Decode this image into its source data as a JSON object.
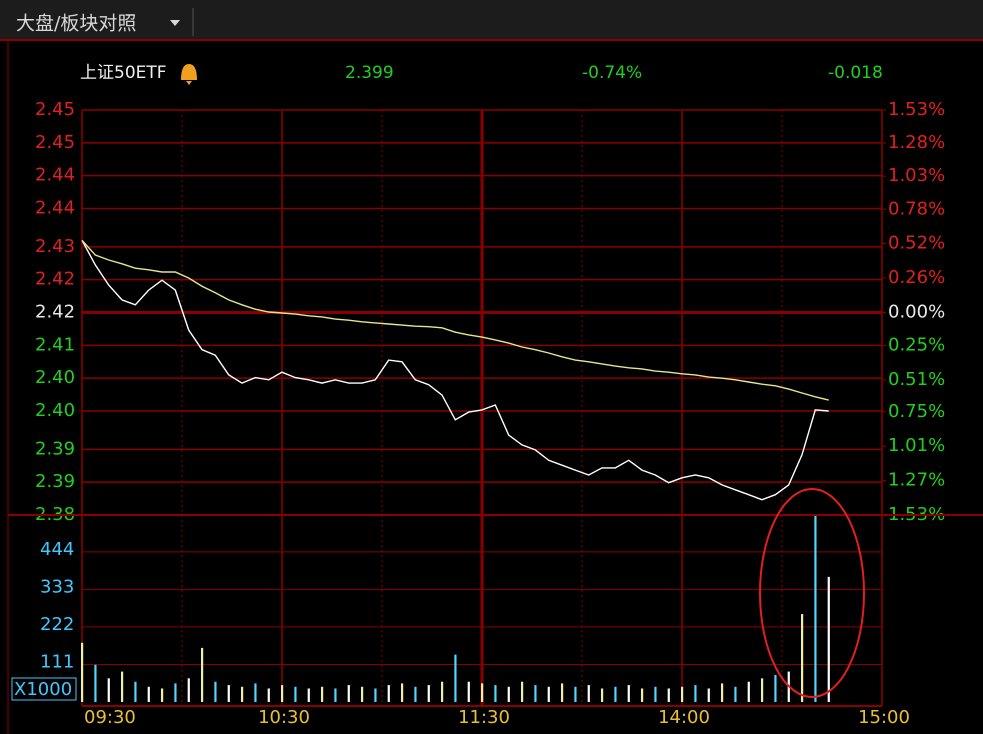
{
  "tab_title": "大盘/板块对照",
  "chart_data": {
    "type": "line",
    "title": "上证50ETF",
    "price": "2.399",
    "change_percent": "-0.74%",
    "change": "-0.018",
    "x": [
      0,
      4,
      8,
      12,
      16,
      20,
      24,
      28,
      32,
      36,
      40,
      44,
      48,
      52,
      56,
      60,
      64,
      68,
      72,
      76,
      80,
      84,
      88,
      92,
      96,
      100,
      104,
      108,
      112,
      116,
      120,
      124,
      128,
      132,
      136,
      140,
      144,
      148,
      152,
      156,
      160,
      164,
      168,
      172,
      176,
      180,
      184,
      188,
      192,
      196,
      200,
      204,
      208,
      212,
      216,
      220,
      224
    ],
    "xlim": [
      0,
      240
    ],
    "xticks": [
      {
        "value": 0,
        "label": "09:30"
      },
      {
        "value": 60,
        "label": "10:30"
      },
      {
        "value": 120,
        "label": "11:30"
      },
      {
        "value": 180,
        "label": "14:00"
      },
      {
        "value": 240,
        "label": "15:00"
      }
    ],
    "xminor": [
      30,
      90,
      150,
      210
    ],
    "ylim": [
      2.38,
      2.454
    ],
    "yticks": [
      {
        "value": 2.454,
        "label": "2.45"
      },
      {
        "value": 2.448,
        "label": "2.45"
      },
      {
        "value": 2.442,
        "label": "2.44"
      },
      {
        "value": 2.436,
        "label": "2.44"
      },
      {
        "value": 2.429,
        "label": "2.43"
      },
      {
        "value": 2.423,
        "label": "2.42"
      },
      {
        "value": 2.417,
        "label": "2.42"
      },
      {
        "value": 2.411,
        "label": "2.41"
      },
      {
        "value": 2.405,
        "label": "2.40"
      },
      {
        "value": 2.399,
        "label": "2.40"
      },
      {
        "value": 2.392,
        "label": "2.39"
      },
      {
        "value": 2.386,
        "label": "2.39"
      },
      {
        "value": 2.38,
        "label": "2.38"
      }
    ],
    "y2lim": [
      -1.53,
      1.53
    ],
    "y2ticks": [
      {
        "value": 1.53,
        "label": "1.53%"
      },
      {
        "value": 1.28,
        "label": "1.28%"
      },
      {
        "value": 1.03,
        "label": "1.03%"
      },
      {
        "value": 0.78,
        "label": "0.78%"
      },
      {
        "value": 0.52,
        "label": "0.52%"
      },
      {
        "value": 0.26,
        "label": "0.26%"
      },
      {
        "value": 0,
        "label": "0.00%"
      },
      {
        "value": -0.25,
        "label": "0.25%"
      },
      {
        "value": -0.51,
        "label": "0.51%"
      },
      {
        "value": -0.75,
        "label": "0.75%"
      },
      {
        "value": -1.01,
        "label": "1.01%"
      },
      {
        "value": -1.27,
        "label": "1.27%"
      },
      {
        "value": -1.53,
        "label": "1.53%"
      }
    ],
    "up_color": "#e02020",
    "down_color": "#20d020",
    "flat_color": "#e8e8e8",
    "grid_color": "#8a0000",
    "series": [
      {
        "color": "#ffffff",
        "values": [
          2.4302,
          2.4257,
          2.422,
          2.4193,
          2.4184,
          2.4211,
          2.4229,
          2.4211,
          2.4138,
          2.4102,
          2.4092,
          2.4056,
          2.4041,
          2.4051,
          2.4047,
          2.4061,
          2.4051,
          2.4047,
          2.4041,
          2.4047,
          2.4041,
          2.4041,
          2.4047,
          2.4083,
          2.408,
          2.4047,
          2.4038,
          2.4019,
          2.3974,
          2.3988,
          2.3992,
          2.4001,
          2.3946,
          2.3928,
          2.3919,
          2.39,
          2.3891,
          2.3882,
          2.3873,
          2.3886,
          2.3886,
          2.39,
          2.3882,
          2.3873,
          2.3859,
          2.3868,
          2.3873,
          2.3868,
          2.3855,
          2.3846,
          2.3837,
          2.3828,
          2.3837,
          2.3855,
          2.391,
          2.3992,
          2.399
        ]
      },
      {
        "color": "#e6e68c",
        "values": [
          2.4302,
          2.4275,
          2.4266,
          2.4259,
          2.4251,
          2.4248,
          2.4244,
          2.4244,
          2.4233,
          2.4218,
          2.4206,
          2.4193,
          2.4184,
          2.4176,
          2.4171,
          2.4169,
          2.4167,
          2.4164,
          2.4162,
          2.4158,
          2.4156,
          2.4153,
          2.4151,
          2.4149,
          2.4147,
          2.4145,
          2.4144,
          2.4142,
          2.4134,
          2.4129,
          2.4125,
          2.412,
          2.4114,
          2.4107,
          2.4102,
          2.4096,
          2.4089,
          2.4083,
          2.408,
          2.4076,
          2.4072,
          2.4069,
          2.4067,
          2.4063,
          2.4061,
          2.4058,
          2.4056,
          2.4052,
          2.405,
          2.4047,
          2.4043,
          2.4039,
          2.4036,
          2.403,
          2.4023,
          2.4016,
          2.401
        ]
      }
    ],
    "volume": {
      "unit_label": "X1000",
      "ylim": [
        0,
        553
      ],
      "yticks": [
        111,
        222,
        333,
        444
      ],
      "tick_color": "#40c8ff",
      "colors": [
        "#f0f0a0",
        "#50d8ff",
        "#ffffff"
      ],
      "values": [
        175,
        110,
        70,
        90,
        60,
        45,
        40,
        55,
        70,
        160,
        60,
        50,
        45,
        55,
        40,
        50,
        45,
        40,
        45,
        40,
        50,
        45,
        40,
        50,
        55,
        45,
        50,
        60,
        140,
        60,
        55,
        50,
        45,
        60,
        50,
        45,
        55,
        45,
        50,
        40,
        45,
        50,
        40,
        45,
        40,
        45,
        50,
        40,
        55,
        45,
        60,
        70,
        80,
        90,
        260,
        550,
        370
      ]
    }
  }
}
